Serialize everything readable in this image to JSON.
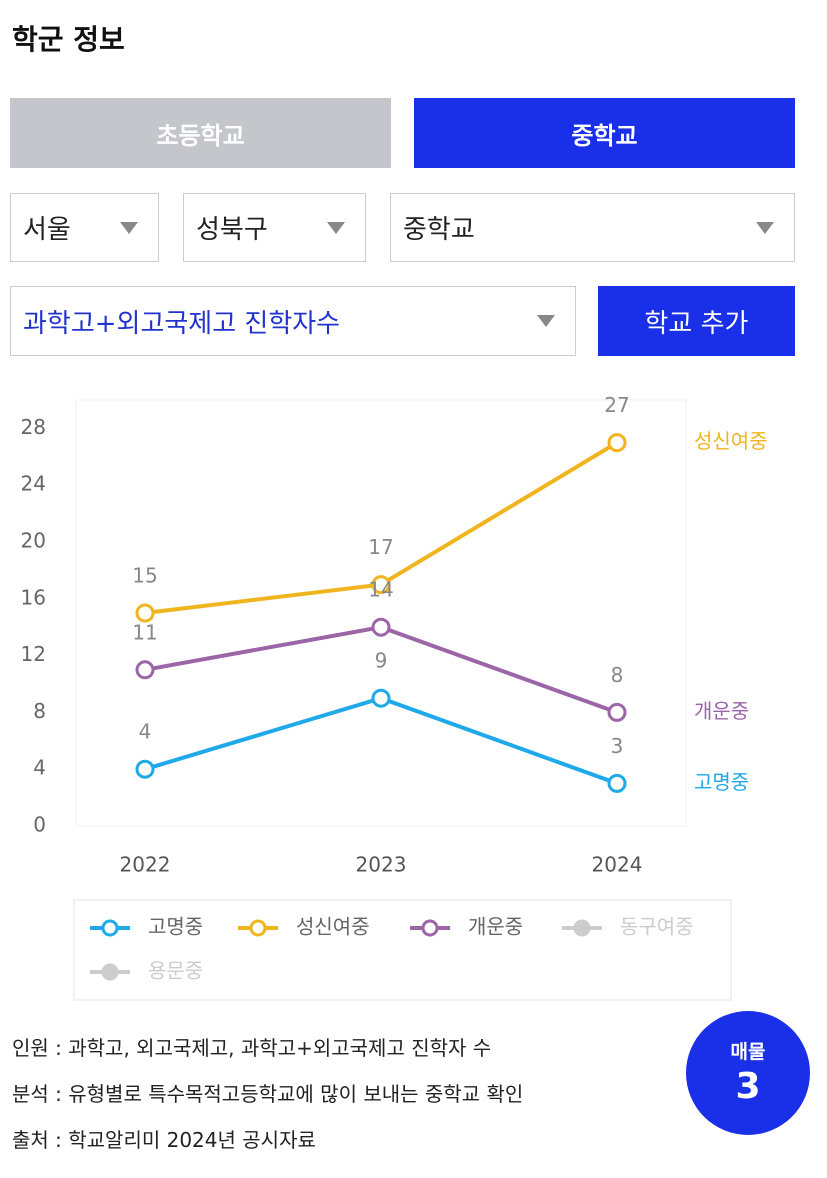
{
  "header": {
    "title": "학군 정보"
  },
  "tabs": [
    {
      "label": "초등학교",
      "active": false
    },
    {
      "label": "중학교",
      "active": true
    }
  ],
  "filters": {
    "region": "서울",
    "district": "성북구",
    "level": "중학교",
    "metric": "과학고+외고국제고 진학자수"
  },
  "button": "학교 추가",
  "chart_data": {
    "type": "line",
    "categories": [
      "2022",
      "2023",
      "2024"
    ],
    "ylim": [
      0,
      30
    ],
    "yticks": [
      0,
      4,
      8,
      12,
      16,
      20,
      24,
      28
    ],
    "grid": false,
    "legend": "bottom",
    "series": [
      {
        "name": "고명중",
        "color": "#1fa9e8",
        "visible": true,
        "values": [
          4,
          9,
          3
        ]
      },
      {
        "name": "성신여중",
        "color": "#f0b41e",
        "visible": true,
        "values": [
          15,
          17,
          27
        ]
      },
      {
        "name": "개운중",
        "color": "#9b65a8",
        "visible": true,
        "values": [
          11,
          14,
          8
        ]
      },
      {
        "name": "동구여중",
        "color": "#cccccc",
        "visible": false,
        "values": [
          null,
          null,
          null
        ]
      },
      {
        "name": "용문중",
        "color": "#cccccc",
        "visible": false,
        "values": [
          null,
          null,
          null
        ]
      }
    ]
  },
  "notes": [
    "인원 : 과학고, 외고국제고, 과학고+외고국제고 진학자 수",
    "분석 : 유형별로 특수목적고등학교에 많이 보내는 중학교 확인",
    "출처 : 학교알리미 2024년 공시자료"
  ],
  "badge": {
    "label": "매물",
    "count": "3"
  }
}
